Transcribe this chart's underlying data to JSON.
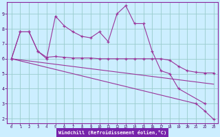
{
  "background_color": "#cceeff",
  "grid_color": "#99cccc",
  "line_color": "#993399",
  "xlim": [
    -0.5,
    23.5
  ],
  "ylim": [
    1.7,
    9.8
  ],
  "yticks": [
    2,
    3,
    4,
    5,
    6,
    7,
    8,
    9
  ],
  "xticks": [
    0,
    1,
    2,
    3,
    4,
    5,
    6,
    7,
    8,
    9,
    10,
    11,
    12,
    13,
    14,
    15,
    16,
    17,
    18,
    19,
    20,
    21,
    22,
    23
  ],
  "xlabel": "Windchill (Refroidissement éolien,°C)",
  "xlabel_bg": "#7722aa",
  "line1_x": [
    0,
    1,
    2,
    3,
    4,
    5,
    6,
    7,
    8,
    9,
    10,
    11,
    12,
    13,
    14,
    15,
    16,
    17,
    18,
    19,
    22
  ],
  "line1_y": [
    6.0,
    7.8,
    7.8,
    6.5,
    6.0,
    8.85,
    8.2,
    7.8,
    7.5,
    7.4,
    7.8,
    7.15,
    9.0,
    9.55,
    8.35,
    8.35,
    6.5,
    5.2,
    5.0,
    4.0,
    3.0
  ],
  "line2_x": [
    0,
    1,
    2,
    3,
    4,
    5,
    6,
    7,
    8,
    9,
    10,
    11,
    12,
    13,
    14,
    15,
    16,
    17,
    18,
    19,
    20,
    21,
    22,
    23
  ],
  "line2_y": [
    6.0,
    7.8,
    7.8,
    6.5,
    6.1,
    6.15,
    6.1,
    6.05,
    6.05,
    6.05,
    6.0,
    6.0,
    6.0,
    6.0,
    6.0,
    6.0,
    6.0,
    6.0,
    5.9,
    5.5,
    5.2,
    5.1,
    5.05,
    5.05
  ],
  "line3_x": [
    0,
    23
  ],
  "line3_y": [
    6.0,
    4.3
  ],
  "line4_x": [
    0,
    21,
    22,
    23
  ],
  "line4_y": [
    6.0,
    3.0,
    2.5,
    1.95
  ]
}
